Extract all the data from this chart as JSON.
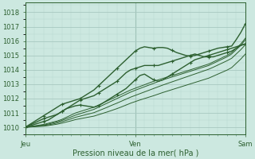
{
  "xlabel": "Pression niveau de la mer( hPa )",
  "bg_color": "#cce8e0",
  "grid_major_color": "#a8c8c0",
  "grid_minor_color": "#b8d8d0",
  "line_color": "#2d6030",
  "tick_label_color": "#2d6030",
  "ylim": [
    1009.5,
    1018.7
  ],
  "yticks": [
    1010,
    1011,
    1012,
    1013,
    1014,
    1015,
    1016,
    1017,
    1018
  ],
  "xtick_positions": [
    0.0,
    0.5,
    1.0
  ],
  "xtick_labels": [
    "Jeu",
    "Ven",
    "Sam"
  ],
  "vline_color": "#7aaa99",
  "n_points": 49,
  "series_with_markers": [
    [
      1010.0,
      1010.1,
      1010.2,
      1010.3,
      1010.4,
      1010.5,
      1010.7,
      1010.9,
      1011.1,
      1011.3,
      1011.5,
      1011.7,
      1011.9,
      1012.0,
      1012.1,
      1012.2,
      1012.4,
      1012.6,
      1012.8,
      1013.0,
      1013.2,
      1013.5,
      1013.8,
      1014.0,
      1014.1,
      1014.2,
      1014.3,
      1014.3,
      1014.3,
      1014.3,
      1014.4,
      1014.5,
      1014.6,
      1014.7,
      1014.8,
      1014.9,
      1015.0,
      1015.1,
      1015.0,
      1014.9,
      1014.9,
      1014.9,
      1015.0,
      1015.1,
      1015.2,
      1015.3,
      1015.5,
      1015.7,
      1015.8
    ],
    [
      1010.0,
      1010.15,
      1010.3,
      1010.45,
      1010.6,
      1010.7,
      1010.8,
      1010.9,
      1011.1,
      1011.3,
      1011.4,
      1011.5,
      1011.55,
      1011.5,
      1011.45,
      1011.4,
      1011.5,
      1011.7,
      1011.9,
      1012.1,
      1012.3,
      1012.5,
      1012.7,
      1013.0,
      1013.3,
      1013.6,
      1013.7,
      1013.5,
      1013.3,
      1013.2,
      1013.3,
      1013.5,
      1013.7,
      1013.9,
      1014.1,
      1014.3,
      1014.5,
      1014.7,
      1014.8,
      1014.9,
      1015.0,
      1015.1,
      1015.2,
      1015.3,
      1015.4,
      1015.5,
      1015.6,
      1015.7,
      1015.8
    ],
    [
      1010.0,
      1010.2,
      1010.4,
      1010.6,
      1010.8,
      1011.0,
      1011.2,
      1011.4,
      1011.6,
      1011.7,
      1011.8,
      1011.9,
      1012.0,
      1012.2,
      1012.4,
      1012.6,
      1012.9,
      1013.2,
      1013.5,
      1013.8,
      1014.1,
      1014.4,
      1014.7,
      1015.0,
      1015.3,
      1015.5,
      1015.6,
      1015.55,
      1015.5,
      1015.55,
      1015.55,
      1015.5,
      1015.35,
      1015.2,
      1015.1,
      1015.0,
      1014.95,
      1015.0,
      1015.1,
      1015.2,
      1015.3,
      1015.4,
      1015.5,
      1015.55,
      1015.6,
      1015.65,
      1016.1,
      1016.6,
      1017.2
    ]
  ],
  "series_plain": [
    [
      1010.0,
      1010.05,
      1010.1,
      1010.15,
      1010.2,
      1010.28,
      1010.36,
      1010.44,
      1010.55,
      1010.7,
      1010.85,
      1011.0,
      1011.1,
      1011.2,
      1011.3,
      1011.4,
      1011.55,
      1011.7,
      1011.85,
      1012.0,
      1012.15,
      1012.3,
      1012.45,
      1012.6,
      1012.72,
      1012.84,
      1012.96,
      1013.08,
      1013.2,
      1013.3,
      1013.4,
      1013.5,
      1013.6,
      1013.7,
      1013.8,
      1013.9,
      1014.0,
      1014.1,
      1014.2,
      1014.3,
      1014.4,
      1014.55,
      1014.7,
      1014.85,
      1015.0,
      1015.2,
      1015.5,
      1015.8,
      1016.2
    ],
    [
      1010.0,
      1010.04,
      1010.08,
      1010.12,
      1010.16,
      1010.22,
      1010.3,
      1010.38,
      1010.48,
      1010.6,
      1010.72,
      1010.85,
      1010.95,
      1011.05,
      1011.15,
      1011.25,
      1011.4,
      1011.55,
      1011.7,
      1011.85,
      1012.0,
      1012.15,
      1012.3,
      1012.45,
      1012.58,
      1012.7,
      1012.82,
      1012.94,
      1013.06,
      1013.18,
      1013.3,
      1013.4,
      1013.5,
      1013.6,
      1013.7,
      1013.8,
      1013.9,
      1014.0,
      1014.1,
      1014.2,
      1014.3,
      1014.45,
      1014.6,
      1014.75,
      1014.9,
      1015.1,
      1015.4,
      1015.7,
      1016.1
    ],
    [
      1010.0,
      1010.03,
      1010.06,
      1010.09,
      1010.12,
      1010.17,
      1010.23,
      1010.3,
      1010.39,
      1010.49,
      1010.59,
      1010.7,
      1010.78,
      1010.86,
      1010.94,
      1011.02,
      1011.15,
      1011.28,
      1011.41,
      1011.55,
      1011.68,
      1011.82,
      1011.96,
      1012.1,
      1012.22,
      1012.34,
      1012.46,
      1012.58,
      1012.7,
      1012.82,
      1012.94,
      1013.05,
      1013.16,
      1013.27,
      1013.38,
      1013.49,
      1013.6,
      1013.71,
      1013.82,
      1013.93,
      1014.04,
      1014.18,
      1014.33,
      1014.48,
      1014.63,
      1014.8,
      1015.1,
      1015.4,
      1015.75
    ],
    [
      1010.0,
      1010.02,
      1010.04,
      1010.06,
      1010.08,
      1010.12,
      1010.17,
      1010.22,
      1010.29,
      1010.37,
      1010.45,
      1010.54,
      1010.6,
      1010.66,
      1010.72,
      1010.78,
      1010.88,
      1010.98,
      1011.08,
      1011.19,
      1011.3,
      1011.42,
      1011.55,
      1011.68,
      1011.79,
      1011.9,
      1012.0,
      1012.1,
      1012.2,
      1012.31,
      1012.42,
      1012.52,
      1012.62,
      1012.72,
      1012.82,
      1012.92,
      1013.02,
      1013.12,
      1013.22,
      1013.32,
      1013.42,
      1013.56,
      1013.7,
      1013.84,
      1013.98,
      1014.15,
      1014.45,
      1014.75,
      1015.1
    ]
  ],
  "marker": "+",
  "marker_size": 3,
  "marker_every": 4,
  "linewidth_marker": 1.0,
  "linewidth_plain": 0.7
}
